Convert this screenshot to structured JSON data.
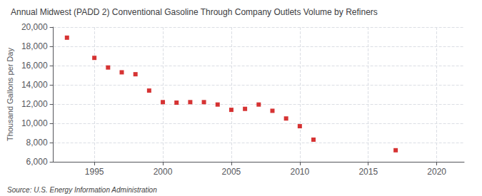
{
  "chart_data": {
    "type": "scatter",
    "title": "Annual Midwest (PADD 2) Conventional Gasoline Through Company Outlets Volume by Refiners",
    "ylabel": "Thousand Gallons per Day",
    "source": "Source: U.S. Energy Information Administration",
    "x": [
      1993,
      1995,
      1996,
      1997,
      1998,
      1999,
      2000,
      2001,
      2002,
      2003,
      2004,
      2005,
      2006,
      2007,
      2008,
      2009,
      2010,
      2011,
      2017
    ],
    "values": [
      18900,
      16800,
      15800,
      15300,
      15100,
      13400,
      12200,
      12150,
      12200,
      12200,
      11950,
      11400,
      11500,
      11950,
      11300,
      10500,
      9700,
      8300,
      7200
    ],
    "color": "#cc0000",
    "marker": "square",
    "xlim": [
      1992,
      2022
    ],
    "xticks": [
      1995,
      2000,
      2005,
      2010,
      2015,
      2020
    ],
    "ylim": [
      6000,
      20000
    ],
    "yticks": [
      {
        "value": 6000,
        "label": "6,000"
      },
      {
        "value": 8000,
        "label": "8,000"
      },
      {
        "value": 10000,
        "label": "10,000"
      },
      {
        "value": 12000,
        "label": "12,000"
      },
      {
        "value": 14000,
        "label": "14,000"
      },
      {
        "value": 16000,
        "label": "16,000"
      },
      {
        "value": 18000,
        "label": "18,000"
      },
      {
        "value": 20000,
        "label": "20,000"
      }
    ],
    "grid": true
  }
}
